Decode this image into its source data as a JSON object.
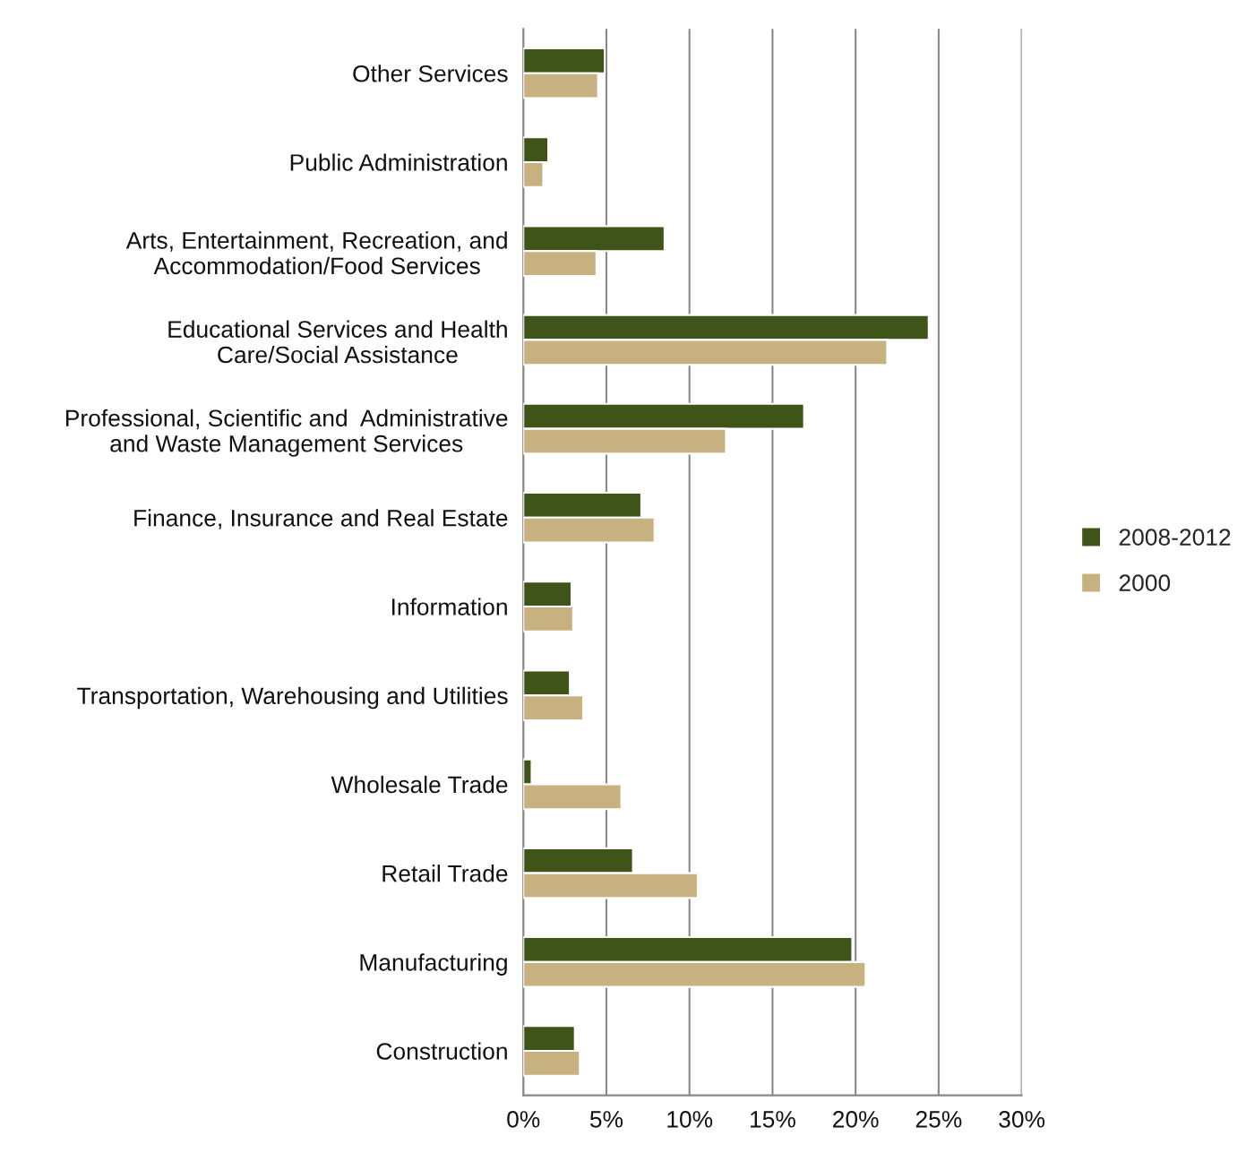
{
  "chart_data": {
    "type": "bar",
    "orientation": "horizontal",
    "categories": [
      "Other Services",
      "Public Administration",
      "Arts, Entertainment, Recreation, and\nAccommodation/Food Services",
      "Educational Services and Health\nCare/Social Assistance",
      "Professional, Scientific and  Administrative\nand Waste Management Services",
      "Finance, Insurance and Real Estate",
      "Information",
      "Transportation, Warehousing and Utilities",
      "Wholesale Trade",
      "Retail Trade",
      "Manufacturing",
      "Construction"
    ],
    "series": [
      {
        "name": "2008-2012",
        "color": "#3f5418",
        "values": [
          4.9,
          1.5,
          8.5,
          24.4,
          16.9,
          7.1,
          2.9,
          2.8,
          0.5,
          6.6,
          19.8,
          3.1
        ]
      },
      {
        "name": "2000",
        "color": "#c8b181",
        "values": [
          4.5,
          1.2,
          4.4,
          21.9,
          12.2,
          7.9,
          3.0,
          3.6,
          5.9,
          10.5,
          20.6,
          3.4
        ]
      }
    ],
    "xlim": [
      0,
      30
    ],
    "xticks": [
      {
        "value": 0,
        "label": "0%"
      },
      {
        "value": 5,
        "label": "5%"
      },
      {
        "value": 10,
        "label": "10%"
      },
      {
        "value": 15,
        "label": "15%"
      },
      {
        "value": 20,
        "label": "20%"
      },
      {
        "value": 25,
        "label": "25%"
      },
      {
        "value": 30,
        "label": "30%"
      }
    ],
    "grid": "x",
    "legend": "right"
  }
}
